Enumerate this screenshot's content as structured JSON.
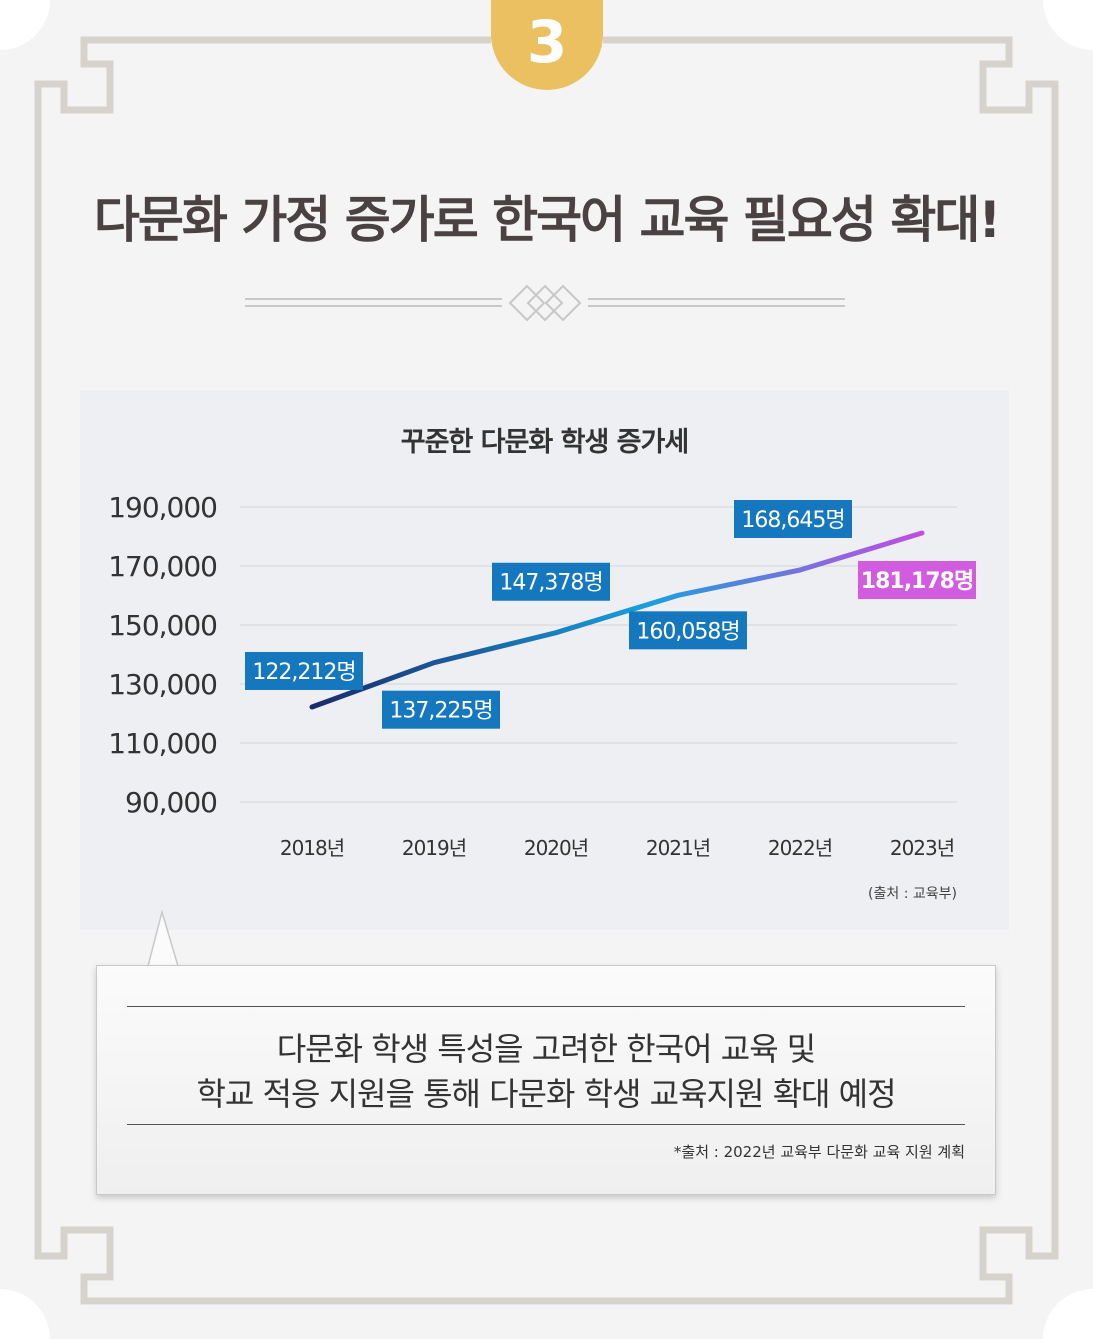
{
  "badge": {
    "number": "3"
  },
  "title": "다문화 가정 증가로 한국어 교육 필요성 확대!",
  "chart_data": {
    "type": "line",
    "title": "꾸준한 다문화 학생 증가세",
    "categories": [
      "2018년",
      "2019년",
      "2020년",
      "2021년",
      "2022년",
      "2023년"
    ],
    "values": [
      122212,
      137225,
      147378,
      160058,
      168645,
      181178
    ],
    "data_labels": [
      "122,212명",
      "137,225명",
      "147,378명",
      "160,058명",
      "168,645명",
      "181,178명"
    ],
    "yticks": [
      "190,000",
      "170,000",
      "150,000",
      "130,000",
      "110,000",
      "90,000"
    ],
    "ylim": [
      90000,
      190000
    ],
    "grid": true,
    "source": "(출처 : 교육부)",
    "colors": {
      "line_start": "#1b2a6b",
      "line_mid": "#1aa0dc",
      "line_end": "#c24de0",
      "label": "#1577bd",
      "label_last": "#d15ce0"
    }
  },
  "callout": {
    "line1": "다문화 학생 특성을 고려한 한국어 교육 및",
    "line2": "학교 적응 지원을 통해 다문화 학생 교육지원 확대 예정",
    "source": "*출처 : 2022년 교육부 다문화 교육 지원 계획"
  }
}
